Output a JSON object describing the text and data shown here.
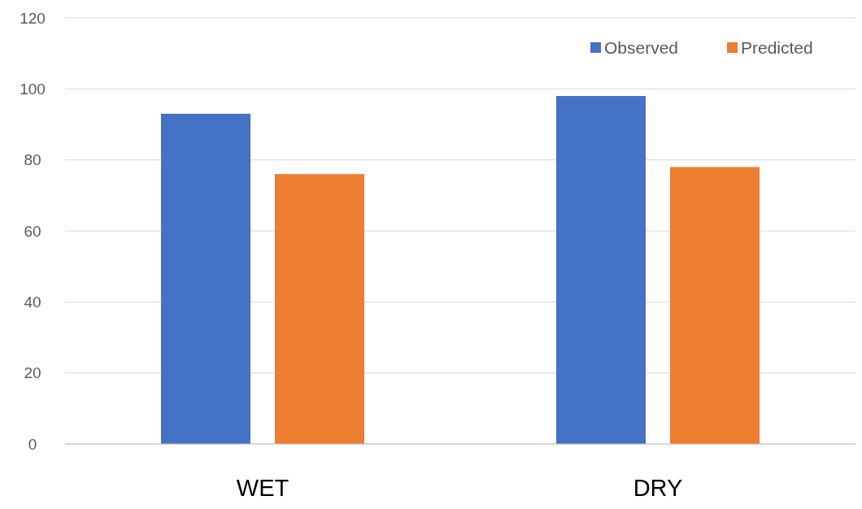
{
  "chart_data": {
    "type": "bar",
    "categories": [
      "WET",
      "DRY"
    ],
    "series": [
      {
        "name": "Observed",
        "color": "#4472c4",
        "values": [
          93,
          98
        ]
      },
      {
        "name": "Predicted",
        "color": "#ed7d31",
        "values": [
          76,
          78
        ]
      }
    ],
    "ylim": [
      0,
      120
    ],
    "yticks": [
      0,
      20,
      40,
      60,
      80,
      100,
      120
    ],
    "grid": "y",
    "legend": "top right"
  }
}
